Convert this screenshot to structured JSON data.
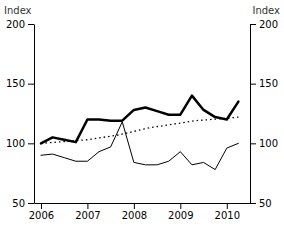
{
  "chart_data": {
    "type": "line",
    "ylabel": "Index",
    "y2label": "Index",
    "xlim": [
      2005.85,
      2010.5
    ],
    "xticks": [
      2006,
      2007,
      2008,
      2009,
      2010
    ],
    "ylim": [
      50,
      200
    ],
    "yticks": [
      50,
      100,
      150,
      200
    ],
    "y2lim": [
      50,
      200
    ],
    "y2ticks": [
      50,
      100,
      150,
      200
    ],
    "grid": false,
    "series": [
      {
        "color": "#000000",
        "line_style": "solid",
        "x": [
          2006.0,
          2006.25,
          2006.5,
          2006.75,
          2007.0,
          2007.25,
          2007.5,
          2007.75,
          2008.0,
          2008.25,
          2008.5,
          2008.75,
          2009.0,
          2009.25,
          2009.5,
          2009.75,
          2010.0,
          2010.25
        ],
        "values": [
          100,
          105,
          103,
          101,
          120,
          120,
          119,
          119,
          128,
          130,
          127,
          124,
          124,
          140,
          128,
          122,
          120,
          135
        ]
      },
      {
        "color": "#000000",
        "line_style": "dotted",
        "x": [
          2006.0,
          2006.33,
          2006.67,
          2007.0,
          2007.33,
          2007.67,
          2008.0,
          2008.33,
          2008.67,
          2009.0,
          2009.33,
          2009.67,
          2010.0,
          2010.25
        ],
        "values": [
          100,
          101,
          102,
          103,
          105,
          107,
          110,
          113,
          115,
          117,
          119,
          120,
          121,
          122
        ]
      },
      {
        "color": "#000000",
        "line_style": "solid",
        "x": [
          2006.0,
          2006.25,
          2006.5,
          2006.75,
          2007.0,
          2007.25,
          2007.5,
          2007.75,
          2008.0,
          2008.25,
          2008.5,
          2008.75,
          2009.0,
          2009.25,
          2009.5,
          2009.75,
          2010.0,
          2010.25
        ],
        "values": [
          90,
          91,
          88,
          85,
          85,
          93,
          97,
          118,
          84,
          82,
          82,
          85,
          93,
          82,
          84,
          78,
          96,
          100
        ]
      }
    ]
  }
}
